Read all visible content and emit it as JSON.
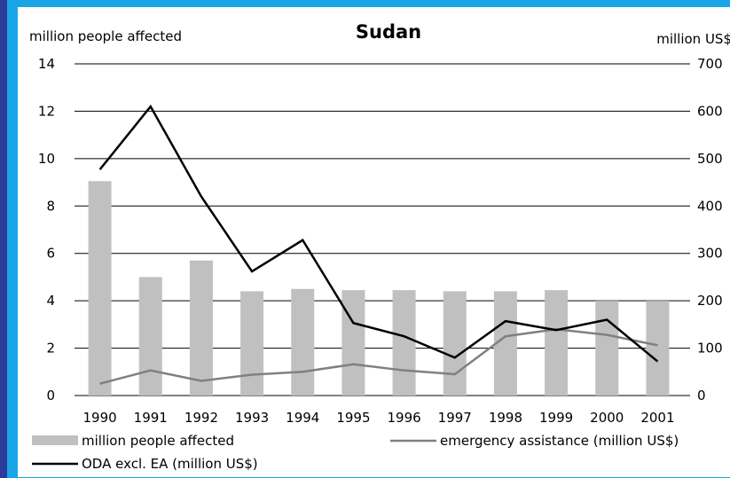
{
  "chart_data": {
    "type": "bar",
    "title": "Sudan",
    "ylabel_left": "million people affected",
    "ylabel_right": "million US$",
    "categories": [
      "1990",
      "1991",
      "1992",
      "1993",
      "1994",
      "1995",
      "1996",
      "1997",
      "1998",
      "1999",
      "2000",
      "2001"
    ],
    "ylim_left": [
      0,
      14
    ],
    "ylim_right": [
      0,
      700
    ],
    "yticks_left": [
      "0",
      "2",
      "4",
      "6",
      "8",
      "10",
      "12",
      "14"
    ],
    "yticks_right": [
      "0",
      "100",
      "200",
      "300",
      "400",
      "500",
      "600",
      "700"
    ],
    "grid": true,
    "legend_position": "bottom",
    "series": [
      {
        "name": "million people affected",
        "type": "bar",
        "axis": "left",
        "color": "#c0c0c0",
        "values": [
          9.05,
          5.0,
          5.7,
          4.4,
          4.5,
          4.45,
          4.45,
          4.4,
          4.4,
          4.45,
          4.0,
          4.0
        ]
      },
      {
        "name": "emergency assistance (million US$)",
        "type": "line",
        "axis": "right",
        "color": "#808080",
        "values": [
          25,
          53,
          31,
          44,
          50,
          66,
          53,
          45,
          125,
          140,
          128,
          106
        ]
      },
      {
        "name": "ODA excl. EA (million US$)",
        "type": "line",
        "axis": "right",
        "color": "#000000",
        "values": [
          477,
          610,
          420,
          262,
          328,
          153,
          125,
          80,
          157,
          138,
          160,
          72
        ]
      }
    ]
  }
}
